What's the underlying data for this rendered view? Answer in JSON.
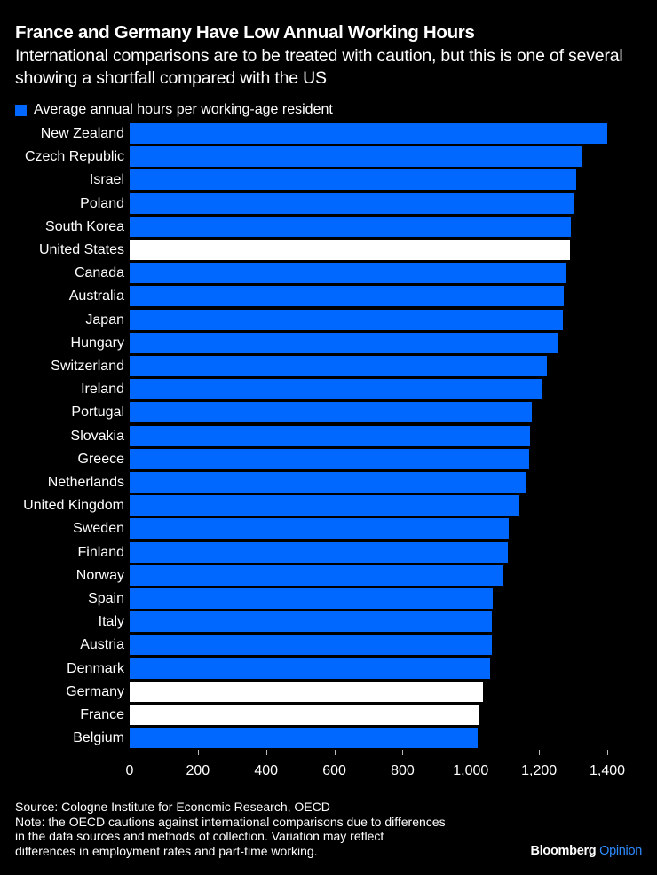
{
  "header": {
    "title": "France and Germany Have Low Annual Working Hours",
    "subtitle": "International comparisons are to be treated with caution, but this is one of several showing a shortfall compared with the US"
  },
  "legend": {
    "label": "Average annual hours per working-age resident",
    "color": "#0068FF"
  },
  "colors": {
    "default": "#0068FF",
    "highlight": "#FFFFFF",
    "background": "#000000"
  },
  "chart_data": {
    "type": "bar",
    "orientation": "horizontal",
    "title": "France and Germany Have Low Annual Working Hours",
    "subtitle": "International comparisons are to be treated with caution, but this is one of several showing a shortfall compared with the US",
    "xlabel": "",
    "ylabel": "",
    "xlim": [
      0,
      1400
    ],
    "xticks": [
      0,
      200,
      400,
      600,
      800,
      1000,
      1200,
      1400
    ],
    "xtick_labels": [
      "0",
      "200",
      "400",
      "600",
      "800",
      "1,000",
      "1,200",
      "1,400"
    ],
    "grid": false,
    "legend_position": "top-left",
    "series": [
      {
        "name": "Average annual hours per working-age resident",
        "values": [
          1400,
          1325,
          1309,
          1304,
          1294,
          1292,
          1278,
          1272,
          1270,
          1257,
          1223,
          1207,
          1179,
          1174,
          1171,
          1163,
          1142,
          1111,
          1109,
          1096,
          1064,
          1063,
          1062,
          1056,
          1036,
          1025,
          1020
        ]
      }
    ],
    "categories": [
      "New Zealand",
      "Czech Republic",
      "Israel",
      "Poland",
      "South Korea",
      "United States",
      "Canada",
      "Australia",
      "Japan",
      "Hungary",
      "Switzerland",
      "Ireland",
      "Portugal",
      "Slovakia",
      "Greece",
      "Netherlands",
      "United Kingdom",
      "Sweden",
      "Finland",
      "Norway",
      "Spain",
      "Italy",
      "Austria",
      "Denmark",
      "Germany",
      "France",
      "Belgium"
    ],
    "highlighted": [
      "United States",
      "Germany",
      "France"
    ]
  },
  "footer": {
    "source": "Source: Cologne Institute for Economic Research, OECD",
    "note_line1": "Note: the OECD cautions against international comparisons due to differences",
    "note_line2": "in the data sources and methods of collection. Variation may reflect",
    "note_line3": "differences in employment rates and part-time working.",
    "brand_main": "Bloomberg",
    "brand_sub": "Opinion"
  }
}
